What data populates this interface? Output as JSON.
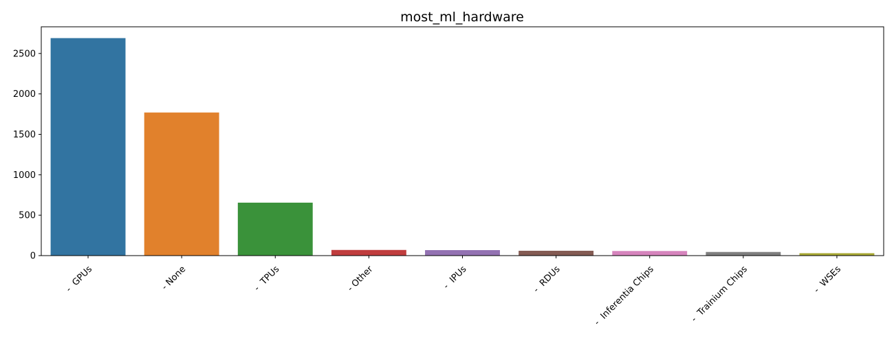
{
  "chart_data": {
    "type": "bar",
    "title": "most_ml_hardware",
    "xlabel": "",
    "ylabel": "",
    "categories": [
      " -  GPUs",
      " - None",
      " -  TPUs",
      " - Other",
      " -  IPUs",
      " -  RDUs",
      " -  Inferentia Chips",
      " -  Trainium Chips",
      " -  WSEs"
    ],
    "values": [
      2690,
      1770,
      655,
      70,
      68,
      60,
      57,
      45,
      30
    ],
    "colors": [
      "#3274a1",
      "#e1812c",
      "#3a923a",
      "#c03d3e",
      "#9372b2",
      "#845b53",
      "#d684bd",
      "#7f7f7f",
      "#a9aa35"
    ],
    "ylim": [
      0,
      2830
    ],
    "yticks": [
      0,
      500,
      1000,
      1500,
      2000,
      2500
    ],
    "grid": false,
    "legend": "none"
  }
}
